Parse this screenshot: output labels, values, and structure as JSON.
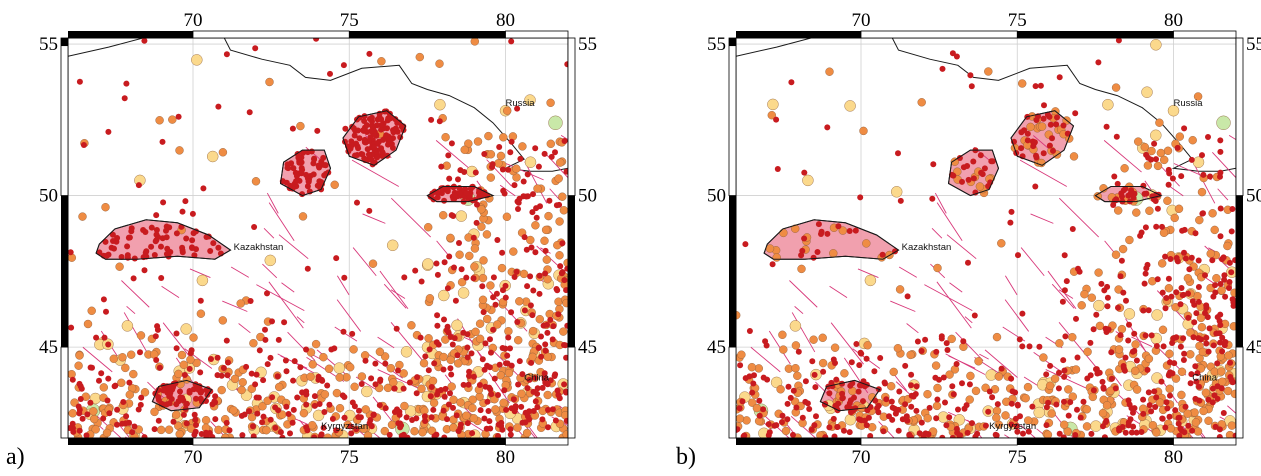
{
  "panels": [
    {
      "id": "a",
      "letter": "a)"
    },
    {
      "id": "b",
      "letter": "b)"
    }
  ],
  "map": {
    "lon_range": [
      66,
      82
    ],
    "lat_range": [
      42,
      55.2
    ],
    "lon_ticks": [
      "70",
      "75",
      "80"
    ],
    "lat_ticks": [
      "55",
      "50",
      "45"
    ],
    "places": {
      "russia": "Russia",
      "kazakhstan": "Kazakhstan",
      "china": "China",
      "kyrgyzstan": "Kyrgyzstan"
    }
  },
  "colors": {
    "frame": "#000000",
    "grid": "#d0d0d0",
    "border": "#1a1a1a",
    "fault": "#d8387a",
    "zone_fill": "#ef8fa0",
    "dot_red": "#c81b1f",
    "dot_orange": "#ef8c43",
    "dot_yellow": "#fbd98c",
    "dot_green": "#c9e8a8"
  }
}
